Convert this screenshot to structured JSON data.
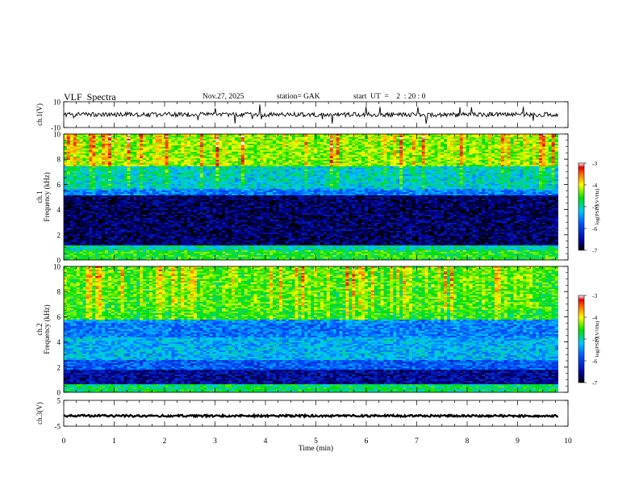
{
  "header": {
    "title": "VLF  Spectra",
    "date": "Nov.27, 2025",
    "station": "station= GAK",
    "start_ut": "start  UT  =    2  : 20 : 0"
  },
  "chart_data": [
    {
      "type": "line",
      "ylabel": "ch.1(V)",
      "ylim": [
        -10,
        10
      ],
      "ytick_labels": [
        "10",
        "-10"
      ],
      "xlim": [
        0,
        10
      ],
      "baseline": 0,
      "trace_color": "#000000"
    },
    {
      "type": "heatmap",
      "ylabel": "ch.1\nFrequency  (kHz)",
      "ylim": [
        0,
        10
      ],
      "ytick_labels": [
        "0",
        "2",
        "4",
        "6",
        "8",
        "10"
      ],
      "xlim": [
        0,
        9.8
      ],
      "colorbar": {
        "label": "log(PSD)(V²/Hz)",
        "range": [
          -7,
          -3
        ],
        "tick_labels": [
          "-3",
          "-4",
          "-5",
          "-6",
          "-7"
        ]
      },
      "bands": [
        {
          "from": 0.0,
          "to": 0.8,
          "level": -4.6
        },
        {
          "from": 0.8,
          "to": 1.1,
          "level": -5.0
        },
        {
          "from": 1.1,
          "to": 5.1,
          "level": -6.7
        },
        {
          "from": 5.1,
          "to": 5.6,
          "level": -5.6
        },
        {
          "from": 5.6,
          "to": 7.5,
          "level": -5.2
        },
        {
          "from": 7.5,
          "to": 10.0,
          "level": -4.4
        }
      ]
    },
    {
      "type": "heatmap",
      "ylabel": "ch.2\nFrequency  (kHz)",
      "ylim": [
        0,
        10
      ],
      "ytick_labels": [
        "0",
        "2",
        "4",
        "6",
        "8",
        "10"
      ],
      "xlim": [
        0,
        9.8
      ],
      "colorbar": {
        "label": "log(PSD)(V²/Hz)",
        "range": [
          -7,
          -3
        ],
        "tick_labels": [
          "-3",
          "-4",
          "-5",
          "-6",
          "-7"
        ]
      },
      "bands": [
        {
          "from": 0.0,
          "to": 0.6,
          "level": -4.8
        },
        {
          "from": 0.6,
          "to": 1.8,
          "level": -6.5
        },
        {
          "from": 1.8,
          "to": 2.6,
          "level": -5.8
        },
        {
          "from": 2.6,
          "to": 4.3,
          "level": -5.3
        },
        {
          "from": 4.3,
          "to": 5.8,
          "level": -5.6
        },
        {
          "from": 5.8,
          "to": 6.6,
          "level": -4.7
        },
        {
          "from": 6.6,
          "to": 10.0,
          "level": -4.6
        }
      ]
    },
    {
      "type": "line",
      "ylabel": "ch.3(V)",
      "ylim": [
        -5,
        5
      ],
      "ytick_labels": [
        "5",
        "-5"
      ],
      "xlim": [
        0,
        10
      ],
      "baseline": -1.0,
      "trace_color": "#000000"
    }
  ],
  "xaxis": {
    "label": "Time  (min)",
    "range": [
      0,
      10
    ],
    "tick_labels": [
      "0",
      "1",
      "2",
      "3",
      "4",
      "5",
      "6",
      "7",
      "8",
      "9",
      "10"
    ]
  }
}
